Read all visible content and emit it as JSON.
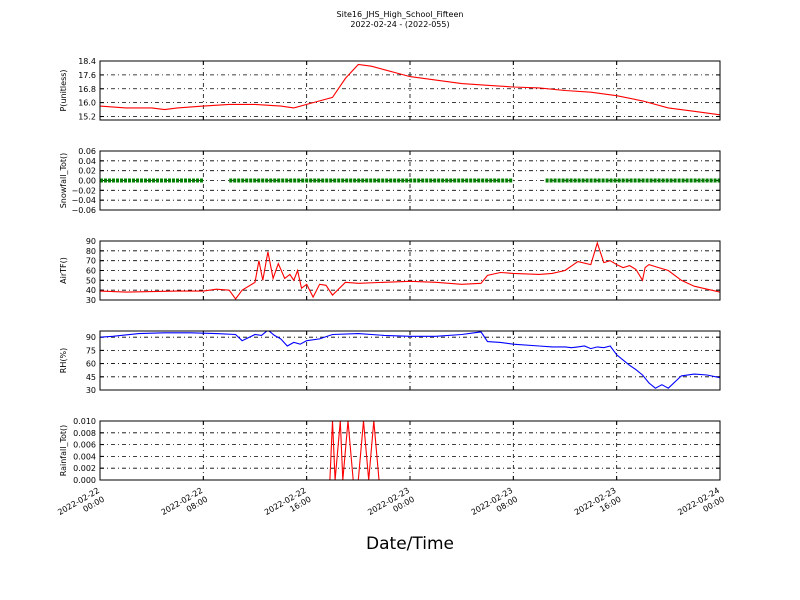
{
  "chart_data": {
    "title": "Site16_JHS_High_School_Fifteen",
    "subtitle": "2022-02-24 - (2022-055)",
    "xlabel": "Date/Time",
    "type": "line",
    "x_ticks": [
      {
        "label_date": "2022-02-22",
        "label_time": "00:00",
        "hours": 0
      },
      {
        "label_date": "2022-02-22",
        "label_time": "08:00",
        "hours": 8
      },
      {
        "label_date": "2022-02-22",
        "label_time": "16:00",
        "hours": 16
      },
      {
        "label_date": "2022-02-23",
        "label_time": "00:00",
        "hours": 24
      },
      {
        "label_date": "2022-02-23",
        "label_time": "08:00",
        "hours": 32
      },
      {
        "label_date": "2022-02-23",
        "label_time": "16:00",
        "hours": 40
      },
      {
        "label_date": "2022-02-24",
        "label_time": "00:00",
        "hours": 48
      }
    ],
    "panels": [
      {
        "ylabel": "P(unitless)",
        "color": "#ff0000",
        "ylim": [
          15.0,
          18.4
        ],
        "yticks": [
          "18.4",
          "17.6",
          "16.8",
          "16.0",
          "15.2"
        ],
        "ytick_values": [
          18.4,
          17.6,
          16.8,
          16.0,
          15.2
        ],
        "series": [
          {
            "x": [
              0,
              2,
              4,
              5,
              6,
              8,
              10,
              12,
              14,
              15,
              16,
              17,
              18,
              19,
              20,
              21,
              22,
              23,
              24,
              26,
              28,
              30,
              32,
              34,
              36,
              38,
              40,
              42,
              44,
              46,
              48
            ],
            "y": [
              15.8,
              15.7,
              15.7,
              15.6,
              15.7,
              15.8,
              15.9,
              15.9,
              15.8,
              15.7,
              15.9,
              16.1,
              16.3,
              17.4,
              18.2,
              18.1,
              17.9,
              17.7,
              17.5,
              17.3,
              17.1,
              17.0,
              16.9,
              16.85,
              16.7,
              16.6,
              16.4,
              16.1,
              15.7,
              15.5,
              15.3
            ]
          }
        ]
      },
      {
        "ylabel": "Snowfall_Tot()",
        "color": "#008000",
        "ylim": [
          -0.06,
          0.06
        ],
        "yticks": [
          "0.06",
          "0.04",
          "0.02",
          "0.00",
          "−0.02",
          "−0.04",
          "−0.06"
        ],
        "ytick_values": [
          0.06,
          0.04,
          0.02,
          0.0,
          -0.02,
          -0.04,
          -0.06
        ],
        "series": [
          {
            "x": [
              0,
              8
            ],
            "y": [
              0,
              0
            ]
          },
          {
            "x": [
              10,
              32
            ],
            "y": [
              0,
              0
            ]
          },
          {
            "x": [
              34.5,
              48
            ],
            "y": [
              0,
              0
            ]
          }
        ]
      },
      {
        "ylabel": "AirTF()",
        "color": "#ff0000",
        "ylim": [
          30,
          90
        ],
        "yticks": [
          "90",
          "80",
          "70",
          "60",
          "50",
          "40",
          "30"
        ],
        "ytick_values": [
          90,
          80,
          70,
          60,
          50,
          40,
          30
        ],
        "series": [
          {
            "x": [
              0,
              2,
              4,
              6,
              8,
              9,
              10,
              10.5,
              11,
              12,
              12.3,
              12.6,
              13,
              13.4,
              13.8,
              14.3,
              14.7,
              15,
              15.3,
              15.6,
              16,
              16.5,
              17,
              17.5,
              18,
              19,
              20,
              22,
              24,
              26,
              28,
              29.5,
              30,
              31,
              32,
              34,
              35,
              36,
              37,
              38,
              38.5,
              39,
              39.5,
              40,
              40.5,
              41,
              41.5,
              42,
              42.2,
              42.5,
              43,
              44,
              45,
              46,
              47,
              48
            ],
            "y": [
              39,
              38,
              38.5,
              39,
              39,
              41,
              40,
              31,
              40,
              48,
              70,
              50,
              79,
              52,
              67,
              52,
              56,
              50,
              60,
              42,
              46,
              33,
              46,
              45,
              35,
              48,
              47,
              48,
              49,
              48,
              46,
              47,
              55,
              58,
              57,
              56,
              57,
              60,
              69,
              66,
              88,
              68,
              70,
              66,
              63,
              65,
              61,
              50,
              63,
              66,
              64,
              60,
              50,
              44,
              41,
              38
            ]
          }
        ]
      },
      {
        "ylabel": "RH(%)",
        "color": "#0000ff",
        "ylim": [
          30,
          97
        ],
        "yticks": [
          "90",
          "75",
          "60",
          "45",
          "30"
        ],
        "ytick_values": [
          90,
          75,
          60,
          45,
          30
        ],
        "series": [
          {
            "x": [
              0,
              1,
              3,
              5,
              7,
              9,
              10.5,
              11,
              12,
              12.5,
              13,
              13.5,
              14,
              14.5,
              15,
              15.5,
              16,
              17,
              18,
              20,
              22,
              24,
              26,
              28,
              29.5,
              30,
              31,
              32,
              34,
              35,
              36,
              36.5,
              37,
              37.5,
              38,
              38.5,
              39,
              39.5,
              40,
              40.5,
              41,
              41.5,
              42,
              42.5,
              43,
              43.5,
              44,
              45,
              46,
              47,
              48
            ],
            "y": [
              90,
              91,
              94,
              95,
              95,
              94,
              93,
              86,
              93,
              92,
              98,
              92,
              88,
              80,
              84,
              82,
              86,
              88,
              93,
              94,
              92,
              91,
              91,
              93,
              96,
              85,
              84,
              82,
              80,
              79,
              79,
              78,
              79,
              80,
              77,
              79,
              78,
              80,
              70,
              64,
              58,
              53,
              47,
              38,
              32,
              36,
              32,
              46,
              48,
              47,
              44
            ]
          }
        ]
      },
      {
        "ylabel": "Rainfall_Tot()",
        "color": "#ff0000",
        "ylim": [
          0,
          0.01
        ],
        "yticks": [
          "0.010",
          "0.008",
          "0.006",
          "0.004",
          "0.002",
          "0.000"
        ],
        "ytick_values": [
          0.01,
          0.008,
          0.006,
          0.004,
          0.002,
          0.0
        ],
        "series": [
          {
            "x": [
              0,
              17.8,
              18,
              18.2,
              18.6,
              18.8,
              19.2,
              19.6,
              20.0,
              20.4,
              20.8,
              21.2,
              21.6,
              22,
              48
            ],
            "y": [
              0,
              0,
              0.01,
              0,
              0.01,
              0,
              0.01,
              0,
              0,
              0.01,
              0,
              0.01,
              0,
              0,
              0
            ]
          }
        ]
      }
    ]
  }
}
